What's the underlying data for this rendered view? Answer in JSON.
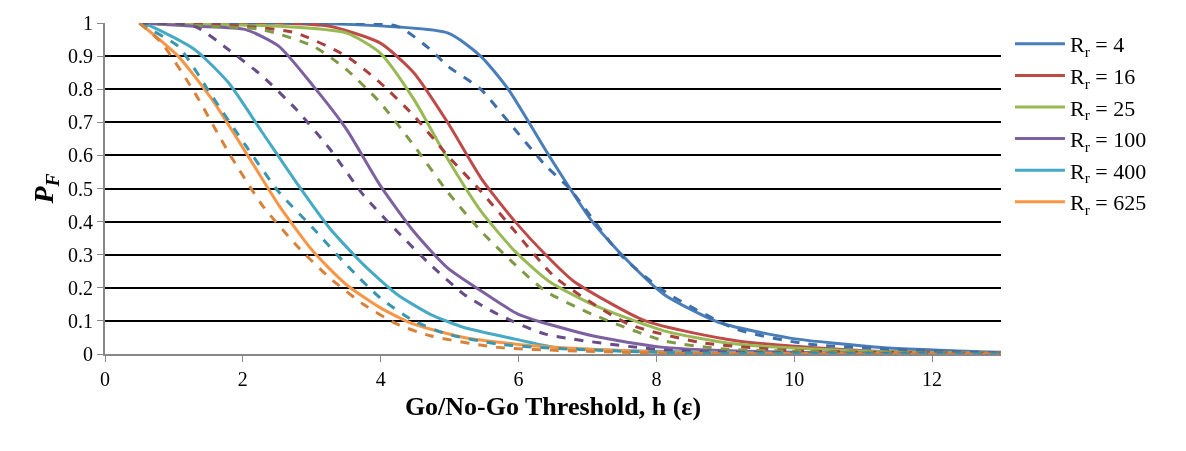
{
  "chart_data": {
    "type": "line",
    "xlabel": "Go/No-Go Threshold, h (ε)",
    "ylabel": "P$_{F}$",
    "xlim": [
      0,
      13
    ],
    "xticks": [
      0,
      2,
      4,
      6,
      8,
      10,
      12
    ],
    "ylim": [
      0,
      1
    ],
    "yticks": [
      0,
      {
        "value": 0.1,
        "label": "0.1"
      },
      {
        "value": 0.2,
        "label": "0.2"
      },
      {
        "value": 0.3,
        "label": "0.3"
      },
      {
        "value": 0.4,
        "label": "0.4"
      },
      {
        "value": 0.5,
        "label": "0.5"
      },
      {
        "value": 0.6,
        "label": "0.6"
      },
      {
        "value": 0.7,
        "label": "0.7"
      },
      {
        "value": 0.8,
        "label": "0.8"
      },
      {
        "value": 0.9,
        "label": "0.9"
      },
      1
    ],
    "grid": "y",
    "legend": "right",
    "marker": "none",
    "series": [
      {
        "name": "R$_{r}$ = 4",
        "color": "#4a7ebb",
        "line_style": "solid",
        "x": [
          0.5,
          3,
          4.97,
          5.45,
          5.85,
          6.44,
          7.07,
          7.59,
          8.11,
          8.9,
          9.94,
          11.26,
          13
        ],
        "values": [
          1,
          1,
          0.97,
          0.9,
          0.8,
          0.6,
          0.4,
          0.28,
          0.18,
          0.096,
          0.048,
          0.02,
          0.005
        ]
      },
      {
        "name": "R$_{r}$ = 16",
        "color": "#be4b48",
        "line_style": "solid",
        "x": [
          0.5,
          2.5,
          3.26,
          3.99,
          4.48,
          4.97,
          5.46,
          5.95,
          6.44,
          6.8,
          7.84,
          9.16,
          11,
          13
        ],
        "values": [
          1,
          1,
          0.99,
          0.94,
          0.85,
          0.7,
          0.53,
          0.4,
          0.29,
          0.22,
          0.1,
          0.04,
          0.01,
          0.003
        ]
      },
      {
        "name": "R$_{r}$ = 25",
        "color": "#98b954",
        "line_style": "solid",
        "x": [
          0.5,
          2.52,
          3.5,
          3.99,
          4.48,
          4.97,
          5.46,
          5.95,
          6.44,
          7.07,
          8.11,
          9.16,
          11,
          13
        ],
        "values": [
          1,
          0.99,
          0.97,
          0.91,
          0.77,
          0.59,
          0.43,
          0.31,
          0.22,
          0.15,
          0.07,
          0.03,
          0.008,
          0.002
        ]
      },
      {
        "name": "R$_{r}$ = 100",
        "color": "#7d60a0",
        "line_style": "solid",
        "x": [
          0.5,
          1.3,
          2.04,
          2.52,
          3.02,
          3.5,
          3.99,
          4.48,
          4.97,
          5.46,
          6.0,
          7.07,
          8.11,
          10,
          13
        ],
        "values": [
          1,
          0.99,
          0.98,
          0.93,
          0.81,
          0.68,
          0.51,
          0.37,
          0.26,
          0.19,
          0.12,
          0.055,
          0.02,
          0.005,
          0.001
        ]
      },
      {
        "name": "R$_{r}$ = 400",
        "color": "#46aac5",
        "line_style": "solid",
        "x": [
          0.5,
          0.67,
          1.3,
          1.79,
          2.28,
          2.77,
          3.26,
          3.75,
          4.24,
          4.72,
          5.21,
          5.95,
          6.54,
          8,
          10,
          13
        ],
        "values": [
          1,
          0.99,
          0.92,
          0.82,
          0.67,
          0.52,
          0.38,
          0.27,
          0.18,
          0.12,
          0.08,
          0.045,
          0.02,
          0.008,
          0.002,
          0.001
        ]
      },
      {
        "name": "R$_{r}$ = 625",
        "color": "#f79646",
        "line_style": "solid",
        "x": [
          0.5,
          1.06,
          1.55,
          2.04,
          2.52,
          3.02,
          3.5,
          3.99,
          4.48,
          5.21,
          6.19,
          8,
          10,
          13
        ],
        "values": [
          1,
          0.9,
          0.77,
          0.61,
          0.45,
          0.31,
          0.21,
          0.14,
          0.09,
          0.05,
          0.025,
          0.006,
          0.001,
          0
        ]
      },
      {
        "color": "#3e6fa8",
        "line_style": "dashed",
        "x": [
          0.5,
          3,
          4.24,
          4.72,
          4.97,
          5.45,
          5.86,
          6.39,
          6.74,
          7.48,
          8.11,
          9.16,
          10.2,
          13
        ],
        "values": [
          1,
          1,
          0.99,
          0.92,
          0.87,
          0.8,
          0.7,
          0.57,
          0.5,
          0.3,
          0.19,
          0.075,
          0.03,
          0.003
        ]
      },
      {
        "color": "#a9403d",
        "line_style": "dashed",
        "x": [
          0.5,
          2.04,
          2.77,
          3.5,
          3.99,
          4.48,
          4.97,
          5.46,
          5.95,
          6.54,
          7.6,
          8.64,
          10,
          13
        ],
        "values": [
          1,
          0.99,
          0.97,
          0.9,
          0.82,
          0.72,
          0.6,
          0.49,
          0.37,
          0.23,
          0.09,
          0.035,
          0.01,
          0.002
        ]
      },
      {
        "color": "#7f9a45",
        "line_style": "dashed",
        "x": [
          0.5,
          1.55,
          2.28,
          3.02,
          3.5,
          3.99,
          4.48,
          4.97,
          5.46,
          5.95,
          6.39,
          7.07,
          8.11,
          9,
          13
        ],
        "values": [
          1,
          0.99,
          0.98,
          0.93,
          0.86,
          0.76,
          0.63,
          0.49,
          0.37,
          0.27,
          0.19,
          0.12,
          0.04,
          0.015,
          0.001
        ]
      },
      {
        "color": "#664d8a",
        "line_style": "dashed",
        "x": [
          0.5,
          1.3,
          1.79,
          2.28,
          2.77,
          3.26,
          3.75,
          4.24,
          4.72,
          5.21,
          5.7,
          6.39,
          8.11,
          10,
          13
        ],
        "values": [
          1,
          0.99,
          0.92,
          0.84,
          0.74,
          0.62,
          0.48,
          0.37,
          0.27,
          0.18,
          0.12,
          0.06,
          0.012,
          0.003,
          0
        ]
      },
      {
        "color": "#3896ae",
        "line_style": "dashed",
        "x": [
          0.5,
          0.57,
          1.06,
          1.55,
          2.04,
          2.52,
          3.02,
          3.5,
          3.99,
          4.48,
          4.97,
          5.7,
          6.44,
          8,
          10,
          13
        ],
        "values": [
          1,
          0.99,
          0.93,
          0.78,
          0.63,
          0.49,
          0.38,
          0.27,
          0.17,
          0.1,
          0.06,
          0.03,
          0.018,
          0.005,
          0.001,
          0
        ]
      },
      {
        "color": "#d6823a",
        "line_style": "dashed",
        "x": [
          0.5,
          0.82,
          1.3,
          1.79,
          2.28,
          2.77,
          3.26,
          3.75,
          4.24,
          4.72,
          5.7,
          8,
          10,
          13
        ],
        "values": [
          1,
          0.94,
          0.79,
          0.61,
          0.45,
          0.33,
          0.23,
          0.15,
          0.09,
          0.055,
          0.02,
          0.003,
          0,
          0
        ]
      }
    ]
  }
}
